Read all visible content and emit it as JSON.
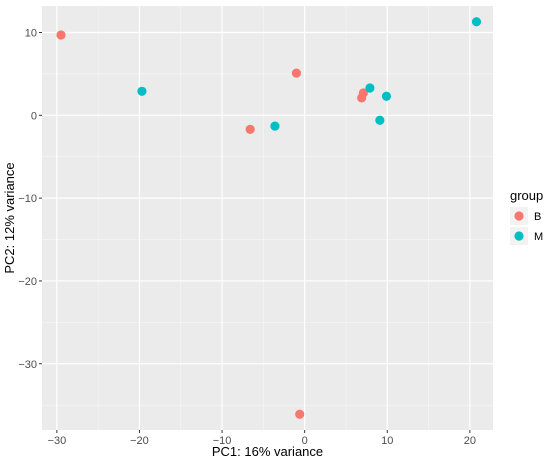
{
  "chart_data": {
    "type": "scatter",
    "xlabel": "PC1: 16% variance",
    "ylabel": "PC2: 12% variance",
    "xlim": [
      -31.8,
      22.8
    ],
    "ylim": [
      -38.0,
      13.2
    ],
    "xticks": [
      -30,
      -20,
      -10,
      0,
      10,
      20
    ],
    "yticks": [
      -30,
      -20,
      -10,
      0,
      10
    ],
    "xtick_labels": [
      "−30",
      "−20",
      "−10",
      "0",
      "10",
      "20"
    ],
    "ytick_labels": [
      "−30",
      "−20",
      "−10",
      "0",
      "10"
    ],
    "grid": true,
    "legend": {
      "title": "group",
      "placement": "right",
      "entries": [
        {
          "label": "B",
          "color": "#F8766D"
        },
        {
          "label": "M",
          "color": "#00BFC4"
        }
      ]
    },
    "series": [
      {
        "name": "B",
        "color": "#F8766D",
        "points": [
          {
            "x": -29.5,
            "y": 9.7
          },
          {
            "x": -6.6,
            "y": -1.7
          },
          {
            "x": -1.0,
            "y": 5.1
          },
          {
            "x": 7.1,
            "y": 2.7
          },
          {
            "x": 6.9,
            "y": 2.1
          },
          {
            "x": -0.6,
            "y": -36.1
          }
        ]
      },
      {
        "name": "M",
        "color": "#00BFC4",
        "points": [
          {
            "x": -19.7,
            "y": 2.9
          },
          {
            "x": -3.6,
            "y": -1.3
          },
          {
            "x": 7.9,
            "y": 3.3
          },
          {
            "x": 9.9,
            "y": 2.3
          },
          {
            "x": 9.1,
            "y": -0.6
          },
          {
            "x": 20.8,
            "y": 11.3
          }
        ]
      }
    ]
  }
}
